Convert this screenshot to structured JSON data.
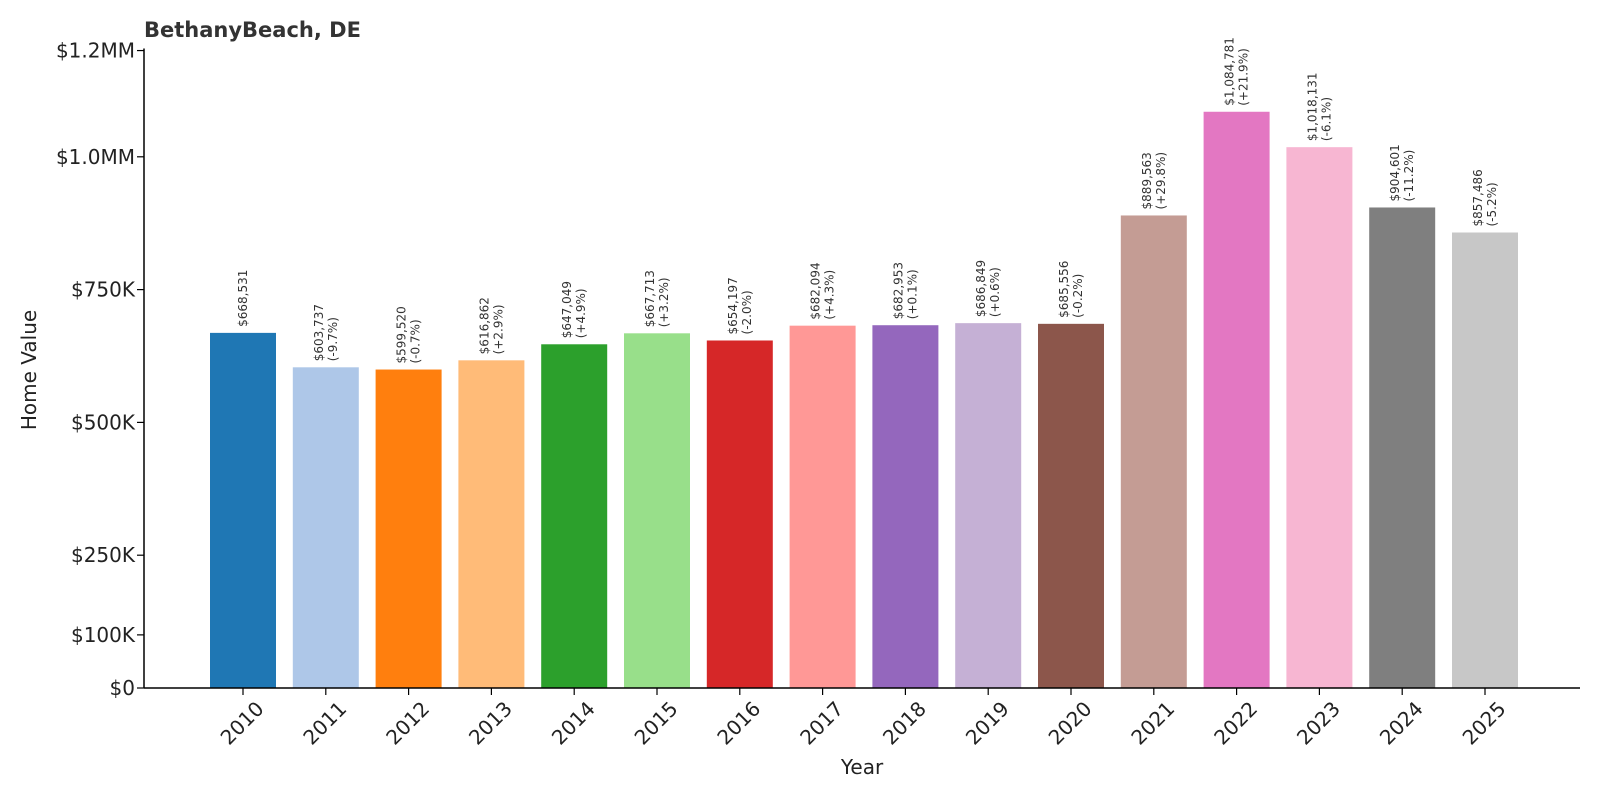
{
  "chart_data": {
    "type": "bar",
    "title": "BethanyBeach, DE",
    "xlabel": "Year",
    "ylabel": "Home Value",
    "categories": [
      "2010",
      "2011",
      "2012",
      "2013",
      "2014",
      "2015",
      "2016",
      "2017",
      "2018",
      "2019",
      "2020",
      "2021",
      "2022",
      "2023",
      "2024",
      "2025"
    ],
    "values": [
      668531,
      603737,
      599520,
      616862,
      647049,
      667713,
      654197,
      682094,
      682953,
      686849,
      685556,
      889563,
      1084781,
      1018131,
      904601,
      857486
    ],
    "value_labels": [
      "$668,531",
      "$603,737",
      "$599,520",
      "$616,862",
      "$647,049",
      "$667,713",
      "$654,197",
      "$682,094",
      "$682,953",
      "$686,849",
      "$685,556",
      "$889,563",
      "$1,084,781",
      "$1,018,131",
      "$904,601",
      "$857,486"
    ],
    "change_labels": [
      "",
      "(-9.7%)",
      "(-0.7%)",
      "(+2.9%)",
      "(+4.9%)",
      "(+3.2%)",
      "(-2.0%)",
      "(+4.3%)",
      "(+0.1%)",
      "(+0.6%)",
      "(-0.2%)",
      "(+29.8%)",
      "(+21.9%)",
      "(-6.1%)",
      "(-11.2%)",
      "(-5.2%)"
    ],
    "colors": [
      "#1f77b4",
      "#aec7e8",
      "#ff7f0e",
      "#ffbb78",
      "#2ca02c",
      "#98df8a",
      "#d62728",
      "#ff9896",
      "#9467bd",
      "#c5b0d5",
      "#8c564b",
      "#c49c94",
      "#e377c2",
      "#f7b6d2",
      "#7f7f7f",
      "#c7c7c7"
    ],
    "yticks": [
      0,
      100000,
      250000,
      500000,
      750000,
      1000000,
      1200000
    ],
    "ytick_labels": [
      "$0",
      "$100K",
      "$250K",
      "$500K",
      "$750K",
      "$1.0MM",
      "$1.2MM"
    ],
    "ylim": [
      0,
      1250000
    ],
    "grid": false
  }
}
